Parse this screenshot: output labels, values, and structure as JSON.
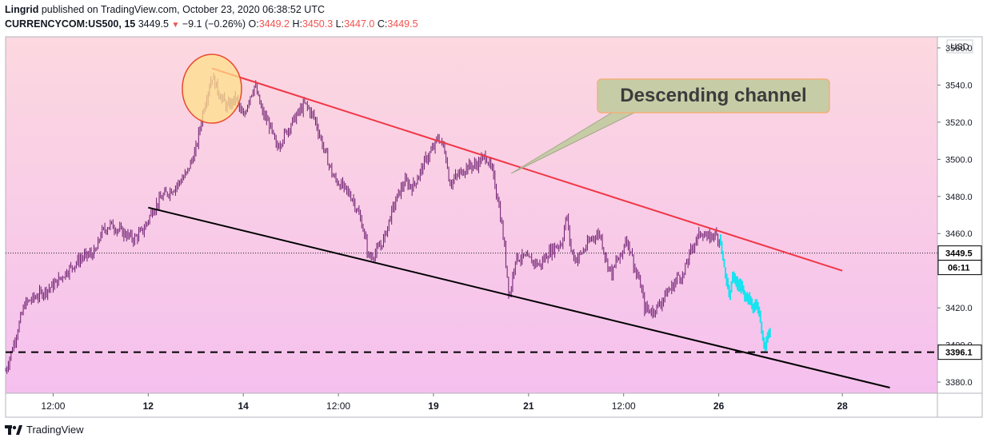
{
  "header": {
    "author": "Lingrid",
    "published_text": "published on TradingView.com, October 23, 2020 06:38:52 UTC",
    "symbol": "CURRENCYCOM:US500, 15",
    "price": "3449.5",
    "change": "−9.1 (−0.26%)",
    "open_label": "O:",
    "open": "3449.2",
    "high_label": "H:",
    "high": "3450.3",
    "low_label": "L:",
    "low": "3447.0",
    "close_label": "C:",
    "close": "3449.5"
  },
  "footer": {
    "brand": "TradingView",
    "logo_icon": "tradingview-logo-icon"
  },
  "chart_data": {
    "type": "candlestick",
    "currency_label": "USD",
    "y_ticks": [
      "3560.0",
      "3540.0",
      "3520.0",
      "3500.0",
      "3480.0",
      "3460.0",
      "3420.0",
      "3400.0",
      "3380.0"
    ],
    "ylim": [
      3374,
      3566
    ],
    "x_ticks": [
      "12:00",
      "12",
      "14",
      "12:00",
      "19",
      "21",
      "12:00",
      "26",
      "28"
    ],
    "x_tick_positions": [
      0.5,
      1.5,
      2.5,
      3.5,
      4.5,
      5.5,
      6.5,
      7.5,
      8.8
    ],
    "xlim": [
      0,
      9.8
    ],
    "price_path": [
      [
        0.0,
        3386
      ],
      [
        0.07,
        3398
      ],
      [
        0.2,
        3422
      ],
      [
        0.35,
        3427
      ],
      [
        0.5,
        3432
      ],
      [
        0.65,
        3440
      ],
      [
        0.8,
        3447
      ],
      [
        0.95,
        3450
      ],
      [
        1.0,
        3460
      ],
      [
        1.1,
        3465
      ],
      [
        1.25,
        3460
      ],
      [
        1.35,
        3457
      ],
      [
        1.45,
        3462
      ],
      [
        1.55,
        3473
      ],
      [
        1.65,
        3480
      ],
      [
        1.78,
        3485
      ],
      [
        1.9,
        3492
      ],
      [
        2.0,
        3505
      ],
      [
        2.08,
        3527
      ],
      [
        2.17,
        3545
      ],
      [
        2.25,
        3535
      ],
      [
        2.33,
        3528
      ],
      [
        2.42,
        3533
      ],
      [
        2.5,
        3522
      ],
      [
        2.56,
        3533
      ],
      [
        2.62,
        3540
      ],
      [
        2.7,
        3525
      ],
      [
        2.78,
        3518
      ],
      [
        2.85,
        3506
      ],
      [
        2.92,
        3512
      ],
      [
        3.0,
        3519
      ],
      [
        3.08,
        3525
      ],
      [
        3.15,
        3530
      ],
      [
        3.25,
        3522
      ],
      [
        3.35,
        3505
      ],
      [
        3.45,
        3490
      ],
      [
        3.55,
        3485
      ],
      [
        3.65,
        3479
      ],
      [
        3.75,
        3465
      ],
      [
        3.82,
        3447
      ],
      [
        3.9,
        3450
      ],
      [
        3.98,
        3457
      ],
      [
        4.05,
        3470
      ],
      [
        4.12,
        3480
      ],
      [
        4.2,
        3488
      ],
      [
        4.28,
        3485
      ],
      [
        4.35,
        3492
      ],
      [
        4.42,
        3500
      ],
      [
        4.5,
        3506
      ],
      [
        4.55,
        3512
      ],
      [
        4.62,
        3505
      ],
      [
        4.67,
        3487
      ],
      [
        4.75,
        3491
      ],
      [
        4.85,
        3496
      ],
      [
        4.95,
        3497
      ],
      [
        5.05,
        3502
      ],
      [
        5.12,
        3493
      ],
      [
        5.18,
        3478
      ],
      [
        5.23,
        3460
      ],
      [
        5.3,
        3425
      ],
      [
        5.36,
        3447
      ],
      [
        5.45,
        3447
      ],
      [
        5.55,
        3445
      ],
      [
        5.62,
        3443
      ],
      [
        5.7,
        3449
      ],
      [
        5.78,
        3453
      ],
      [
        5.85,
        3455
      ],
      [
        5.9,
        3470
      ],
      [
        5.95,
        3450
      ],
      [
        6.0,
        3446
      ],
      [
        6.08,
        3451
      ],
      [
        6.17,
        3458
      ],
      [
        6.25,
        3460
      ],
      [
        6.32,
        3445
      ],
      [
        6.38,
        3438
      ],
      [
        6.42,
        3445
      ],
      [
        6.48,
        3448
      ],
      [
        6.52,
        3458
      ],
      [
        6.58,
        3450
      ],
      [
        6.62,
        3440
      ],
      [
        6.68,
        3432
      ],
      [
        6.72,
        3420
      ],
      [
        6.8,
        3418
      ],
      [
        6.88,
        3422
      ],
      [
        6.95,
        3428
      ],
      [
        7.02,
        3432
      ],
      [
        7.08,
        3438
      ],
      [
        7.12,
        3436
      ],
      [
        7.18,
        3447
      ],
      [
        7.25,
        3456
      ],
      [
        7.32,
        3461
      ],
      [
        7.38,
        3457
      ],
      [
        7.45,
        3460
      ],
      [
        7.52,
        3456
      ]
    ],
    "projection_path": [
      [
        7.52,
        3456
      ],
      [
        7.55,
        3447
      ],
      [
        7.58,
        3436
      ],
      [
        7.62,
        3427
      ],
      [
        7.65,
        3437
      ],
      [
        7.7,
        3433
      ],
      [
        7.75,
        3431
      ],
      [
        7.78,
        3426
      ],
      [
        7.83,
        3425
      ],
      [
        7.86,
        3420
      ],
      [
        7.9,
        3422
      ],
      [
        7.93,
        3418
      ],
      [
        7.96,
        3406
      ],
      [
        7.99,
        3398
      ],
      [
        8.02,
        3405
      ],
      [
        8.04,
        3407
      ]
    ],
    "peak_marker": {
      "x": 2.17,
      "y": 3538
    },
    "trendlines": [
      {
        "name": "upper",
        "color": "#f23645",
        "from": [
          2.17,
          3549
        ],
        "to": [
          8.8,
          3440
        ]
      },
      {
        "name": "lower",
        "color": "#000000",
        "from": [
          1.5,
          3474
        ],
        "to": [
          9.3,
          3377
        ]
      }
    ],
    "support_level": {
      "value": 3396.1,
      "label": "3396.1"
    },
    "last_price": {
      "value": 3449.5,
      "label": "3449.5",
      "countdown": "06:11"
    },
    "annotation": "Descending channel",
    "colors": {
      "bg_top": "#fcd8e0",
      "bg_bottom": "#f5c0ee",
      "candles": "#6b1b6e",
      "projection": "#18e3f0",
      "marker_fill": "#ffe08a",
      "marker_stroke": "#e8492e",
      "callout_fill": "#c6cca6"
    }
  }
}
